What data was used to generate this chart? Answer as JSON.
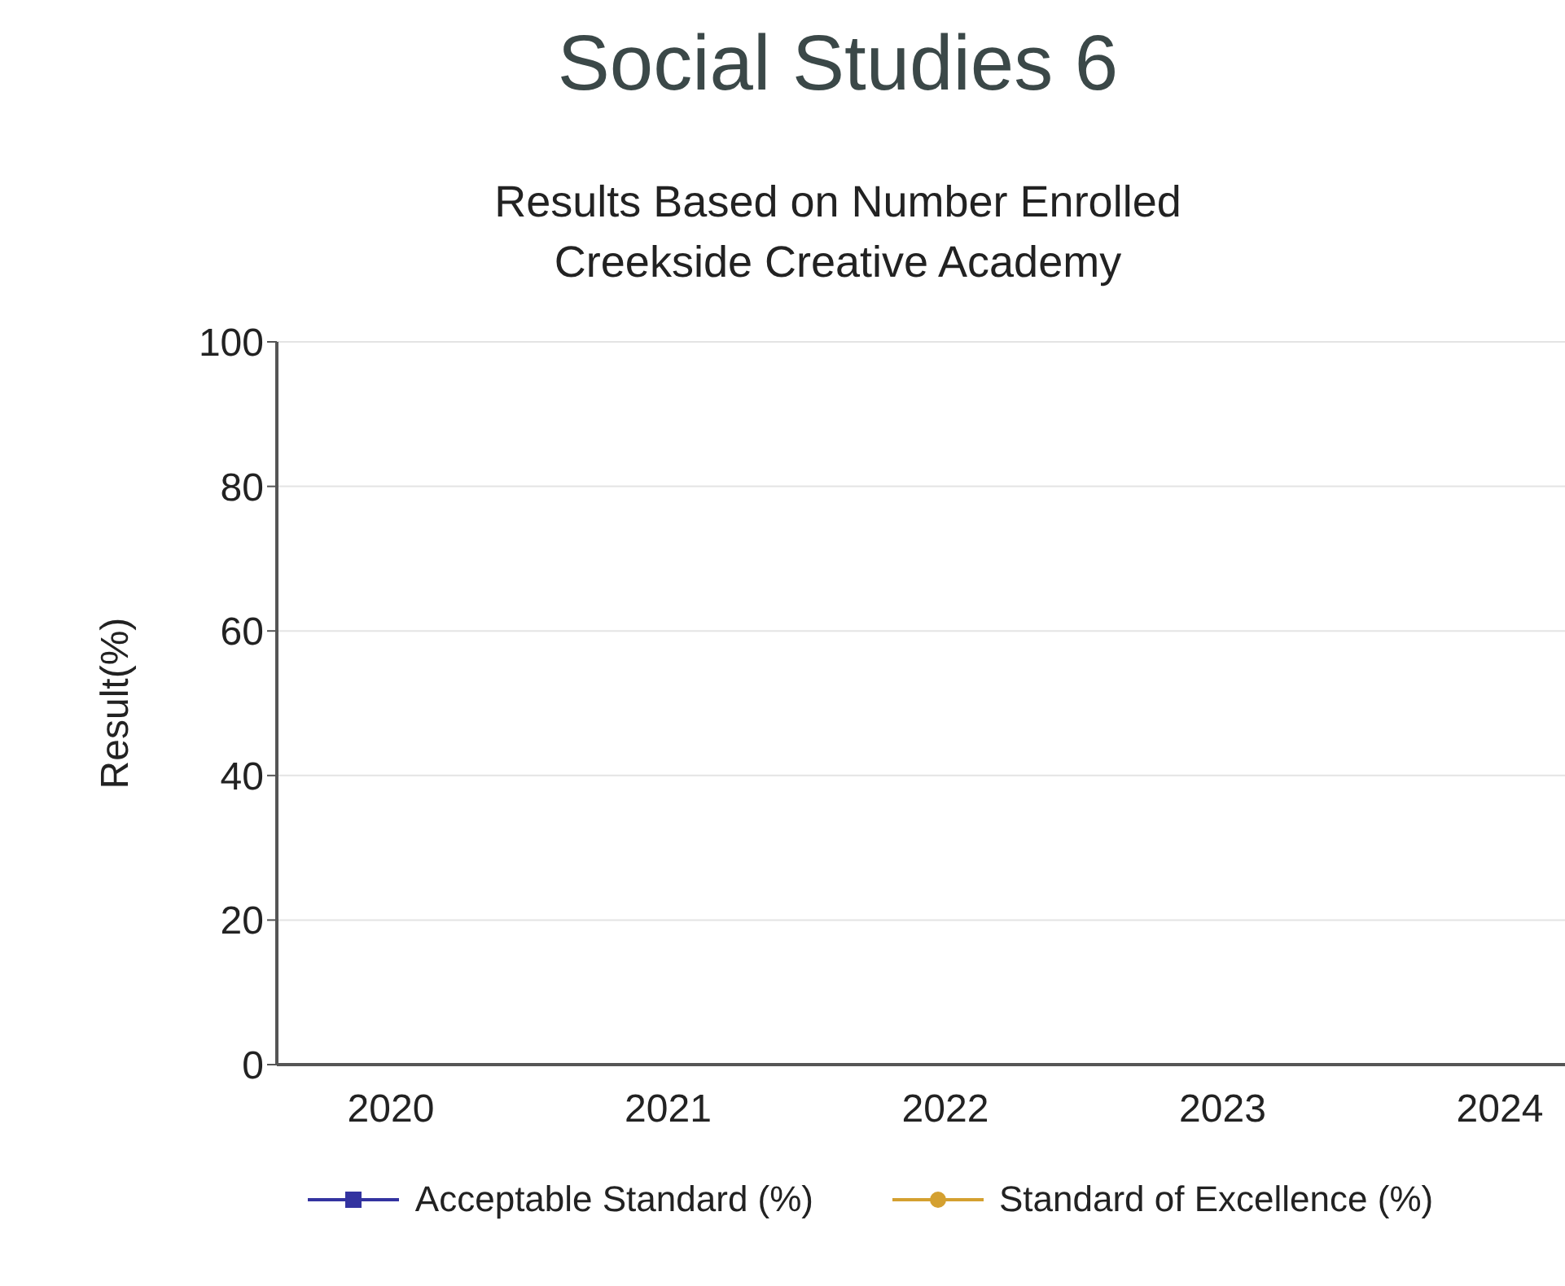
{
  "chart_data": {
    "type": "line",
    "title": "Social Studies 6",
    "subtitle": "Results Based on Number Enrolled\nCreekside Creative Academy",
    "ylabel": "Result(%)",
    "categories": [
      "2020",
      "2021",
      "2022",
      "2023",
      "2024"
    ],
    "ylim": [
      0,
      100
    ],
    "yticks": [
      0,
      20,
      40,
      60,
      80,
      100
    ],
    "series": [
      {
        "name": "Acceptable Standard (%)",
        "color": "#3333a0",
        "marker": "square",
        "values": [
          null,
          null,
          null,
          null,
          null
        ]
      },
      {
        "name": "Standard of Excellence (%)",
        "color": "#d4a030",
        "marker": "circle",
        "values": [
          null,
          null,
          null,
          null,
          null
        ]
      }
    ],
    "grid": "y",
    "legend": "bottom"
  }
}
